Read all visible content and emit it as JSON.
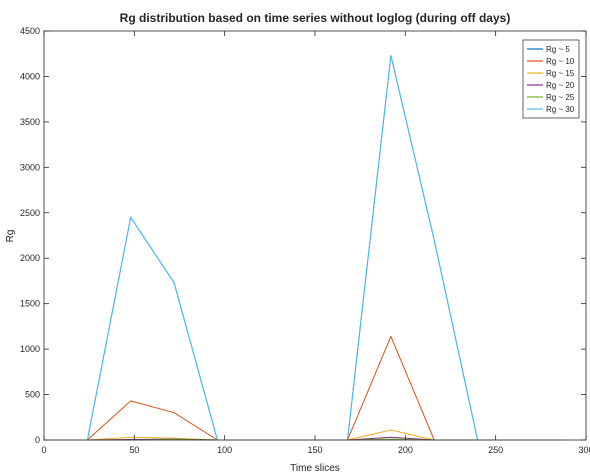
{
  "chart_data": {
    "type": "line",
    "title": "Rg distribution based on time series without loglog (during off days)",
    "xlabel": "Time slices",
    "ylabel": "Rg",
    "xlim": [
      0,
      300
    ],
    "ylim": [
      0,
      4500
    ],
    "xticks": [
      0,
      50,
      100,
      150,
      200,
      250,
      300
    ],
    "xtick_labels": [
      "0",
      "50",
      "100",
      "150",
      "200",
      "250",
      "300"
    ],
    "yticks": [
      0,
      500,
      1000,
      1500,
      2000,
      2500,
      3000,
      3500,
      4000,
      4500
    ],
    "ytick_labels": [
      "0",
      "500",
      "1000",
      "1500",
      "2000",
      "2500",
      "3000",
      "3500",
      "4000",
      "4500"
    ],
    "grid": false,
    "legend_position": "top-right",
    "series": [
      {
        "name": "Rg ~ 5",
        "color": "#0072bd",
        "x": [
          0,
          24,
          48,
          72,
          96,
          120,
          144,
          168,
          192,
          216,
          240,
          264,
          288
        ],
        "y": [
          0,
          0,
          2450,
          1730,
          0,
          0,
          0,
          0,
          4230,
          2200,
          0,
          0,
          0
        ]
      },
      {
        "name": "Rg ~ 10",
        "color": "#d95319",
        "x": [
          0,
          24,
          48,
          72,
          96,
          120,
          144,
          168,
          192,
          216,
          240,
          264,
          288
        ],
        "y": [
          0,
          0,
          430,
          300,
          0,
          0,
          0,
          0,
          1140,
          0,
          0,
          0,
          0
        ]
      },
      {
        "name": "Rg ~ 15",
        "color": "#edb120",
        "x": [
          0,
          24,
          48,
          72,
          96,
          120,
          144,
          168,
          192,
          216,
          240,
          264,
          288
        ],
        "y": [
          0,
          0,
          30,
          20,
          0,
          0,
          0,
          0,
          110,
          0,
          0,
          0,
          0
        ]
      },
      {
        "name": "Rg ~ 20",
        "color": "#7e2f8e",
        "x": [
          0,
          24,
          48,
          72,
          96,
          120,
          144,
          168,
          192,
          216,
          240,
          264,
          288
        ],
        "y": [
          0,
          0,
          5,
          10,
          0,
          0,
          0,
          0,
          30,
          0,
          0,
          0,
          0
        ]
      },
      {
        "name": "Rg ~ 25",
        "color": "#77ac30",
        "x": [
          0,
          24,
          48,
          72,
          96,
          120,
          144,
          168,
          192,
          216,
          240,
          264,
          288
        ],
        "y": [
          0,
          0,
          0,
          5,
          0,
          0,
          0,
          0,
          10,
          0,
          0,
          0,
          0
        ]
      },
      {
        "name": "Rg ~ 30",
        "color": "#4dbeee",
        "x": [
          0,
          24,
          48,
          72,
          96,
          120,
          144,
          168,
          192,
          216,
          240,
          264,
          288
        ],
        "y": [
          0,
          0,
          2450,
          1730,
          0,
          0,
          0,
          0,
          4230,
          2200,
          0,
          0,
          0
        ]
      }
    ]
  }
}
